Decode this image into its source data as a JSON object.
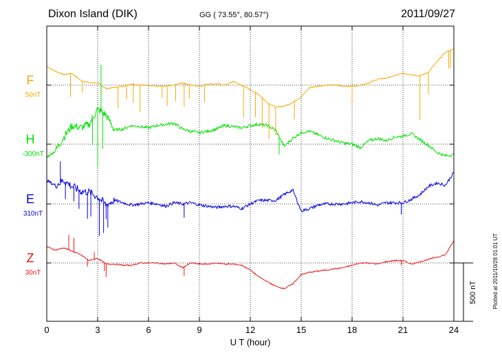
{
  "header": {
    "station": "Dixon Island (DIK)",
    "coords": "GG ( 73.55°,  80.57°)",
    "date": "2011/09/27"
  },
  "footer": {
    "plotted": "Plotted at 2011/10/28 01:01  UT"
  },
  "chart_data": {
    "type": "line",
    "xlabel": "U T (hour)",
    "xlim": [
      0,
      24
    ],
    "xticks": [
      "0",
      "3",
      "6",
      "9",
      "12",
      "15",
      "18",
      "21",
      "24"
    ],
    "grid": true,
    "scale_bar": {
      "label": "500 nT",
      "value": 500
    },
    "series": [
      {
        "name": "F",
        "baseline_label": "50nT",
        "color": "#f5a800",
        "x": [
          0,
          0.5,
          1,
          1.5,
          2,
          2.5,
          3,
          3.5,
          4,
          4.5,
          5,
          5.5,
          6,
          6.5,
          7,
          7.5,
          8,
          8.5,
          9,
          9.5,
          10,
          10.5,
          11,
          11.5,
          12,
          12.5,
          13,
          13.5,
          14,
          14.5,
          15,
          15.5,
          16,
          16.5,
          17,
          17.5,
          18,
          18.5,
          19,
          19.5,
          20,
          20.5,
          21,
          21.5,
          22,
          22.5,
          23,
          23.5,
          24
        ],
        "y": [
          160,
          120,
          90,
          100,
          40,
          20,
          20,
          -30,
          -20,
          -10,
          10,
          0,
          0,
          -10,
          -10,
          0,
          20,
          0,
          -10,
          10,
          10,
          0,
          30,
          0,
          -40,
          -80,
          -150,
          -190,
          -180,
          -150,
          -100,
          -20,
          -10,
          0,
          0,
          -10,
          -10,
          0,
          20,
          50,
          60,
          80,
          100,
          90,
          80,
          110,
          200,
          280,
          310
        ],
        "spikes": [
          [
            1.4,
            -200
          ],
          [
            2.1,
            -100
          ],
          [
            4.2,
            -180
          ],
          [
            4.7,
            -120
          ],
          [
            5.1,
            -160
          ],
          [
            5.5,
            -230
          ],
          [
            6.8,
            -100
          ],
          [
            7.1,
            -170
          ],
          [
            7.6,
            -140
          ],
          [
            8.1,
            -200
          ],
          [
            8.4,
            -120
          ],
          [
            9.3,
            -150
          ],
          [
            11.6,
            -270
          ],
          [
            12.3,
            -210
          ],
          [
            12.7,
            -260
          ],
          [
            13.1,
            -300
          ],
          [
            13.5,
            -240
          ],
          [
            14.6,
            -150
          ],
          [
            18,
            -140
          ],
          [
            22,
            -380
          ],
          [
            22.5,
            -190
          ],
          [
            23.7,
            -150
          ],
          [
            23.8,
            -150
          ]
        ]
      },
      {
        "name": "H",
        "baseline_label": "-300nT",
        "color": "#00e000",
        "x": [
          0,
          0.5,
          1,
          1.5,
          2,
          2.5,
          3,
          3.5,
          4,
          4.5,
          5,
          5.5,
          6,
          6.5,
          7,
          7.5,
          8,
          8.5,
          9,
          9.5,
          10,
          10.5,
          11,
          11.5,
          12,
          12.5,
          13,
          13.5,
          14,
          14.5,
          15,
          15.5,
          16,
          16.5,
          17,
          17.5,
          18,
          18.5,
          19,
          19.5,
          20,
          20.5,
          21,
          21.5,
          22,
          22.5,
          23,
          23.5,
          24
        ],
        "y": [
          -110,
          -60,
          60,
          160,
          140,
          170,
          300,
          250,
          120,
          130,
          160,
          150,
          140,
          160,
          170,
          180,
          130,
          110,
          100,
          110,
          130,
          160,
          150,
          140,
          160,
          170,
          160,
          120,
          -20,
          50,
          100,
          110,
          80,
          50,
          30,
          10,
          0,
          -30,
          30,
          50,
          30,
          60,
          70,
          90,
          40,
          -10,
          -70,
          -100,
          -90
        ],
        "spikes": [
          [
            2.7,
            -230
          ],
          [
            3,
            -500
          ],
          [
            3.3,
            -310
          ],
          [
            3.2,
            400
          ],
          [
            13.7,
            -150
          ]
        ]
      },
      {
        "name": "E",
        "baseline_label": "310nT",
        "color": "#0000e0",
        "x": [
          0,
          0.5,
          1,
          1.5,
          2,
          2.5,
          3,
          3.5,
          4,
          4.5,
          5,
          5.5,
          6,
          6.5,
          7,
          7.5,
          8,
          8.5,
          9,
          9.5,
          10,
          10.5,
          11,
          11.5,
          12,
          12.5,
          13,
          13.5,
          14,
          14.5,
          15,
          15.5,
          16,
          16.5,
          17,
          17.5,
          18,
          18.5,
          19,
          19.5,
          20,
          20.5,
          21,
          21.5,
          22,
          22.5,
          23,
          23.5,
          24
        ],
        "y": [
          200,
          160,
          200,
          150,
          110,
          100,
          60,
          -10,
          30,
          10,
          -10,
          0,
          10,
          0,
          -20,
          10,
          0,
          10,
          -10,
          -20,
          -30,
          -20,
          -20,
          -40,
          0,
          30,
          30,
          30,
          80,
          120,
          -60,
          -40,
          -10,
          0,
          0,
          0,
          10,
          20,
          10,
          -10,
          10,
          10,
          10,
          40,
          80,
          150,
          180,
          160,
          270
        ],
        "spikes": [
          [
            0.8,
            180
          ],
          [
            1.1,
            -150
          ],
          [
            1.6,
            -120
          ],
          [
            1.9,
            -160
          ],
          [
            2.4,
            -230
          ],
          [
            2.6,
            -200
          ],
          [
            3.1,
            -320
          ],
          [
            3.35,
            -260
          ],
          [
            3.5,
            -120
          ],
          [
            3.6,
            -200
          ],
          [
            8.1,
            -120
          ],
          [
            20.9,
            -100
          ]
        ]
      },
      {
        "name": "Z",
        "baseline_label": "30nT",
        "color": "#ee1111",
        "x": [
          0,
          0.5,
          1,
          1.5,
          2,
          2.5,
          3,
          3.5,
          4,
          4.5,
          5,
          5.5,
          6,
          6.5,
          7,
          7.5,
          8,
          8.5,
          9,
          9.5,
          10,
          10.5,
          11,
          11.5,
          12,
          12.5,
          13,
          13.5,
          14,
          14.5,
          15,
          15.5,
          16,
          16.5,
          17,
          17.5,
          18,
          18.5,
          19,
          19.5,
          20,
          20.5,
          21,
          21.5,
          22,
          22.5,
          23,
          23.5,
          24
        ],
        "y": [
          140,
          110,
          130,
          100,
          70,
          20,
          40,
          -10,
          -10,
          -20,
          -20,
          0,
          0,
          0,
          -10,
          0,
          -40,
          0,
          -10,
          -10,
          0,
          -10,
          -10,
          -20,
          -60,
          -120,
          -160,
          -200,
          -220,
          -180,
          -100,
          -80,
          -70,
          -60,
          -50,
          -40,
          -20,
          0,
          0,
          -10,
          10,
          20,
          20,
          -10,
          10,
          30,
          50,
          70,
          190
        ],
        "spikes": [
          [
            1.3,
            130
          ],
          [
            1.6,
            120
          ],
          [
            2.4,
            -60
          ],
          [
            2.8,
            60
          ],
          [
            3.4,
            -70
          ],
          [
            3.5,
            -110
          ],
          [
            8.1,
            -80
          ],
          [
            20.9,
            -40
          ]
        ]
      }
    ]
  }
}
